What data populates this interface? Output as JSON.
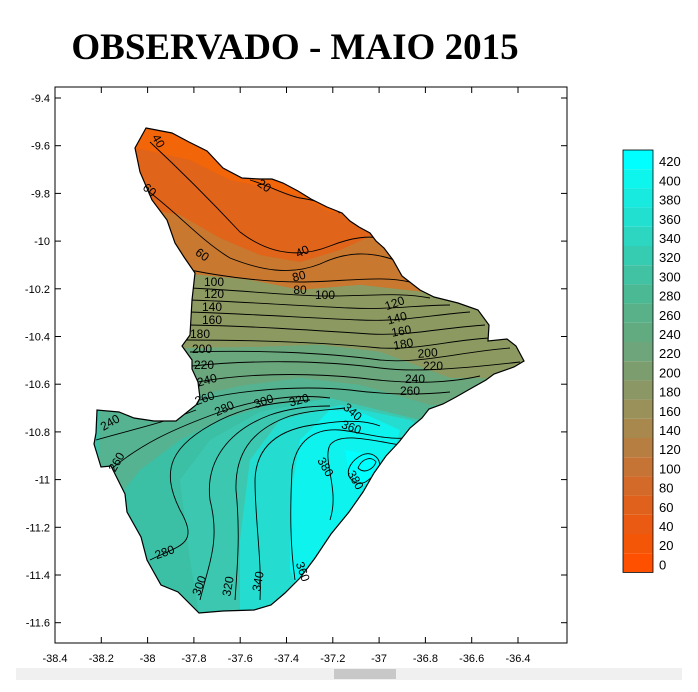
{
  "title": "OBSERVADO - MAIO 2015",
  "axes": {
    "y_ticks": [
      "-9.4",
      "-9.6",
      "-9.8",
      "-10",
      "-10.2",
      "-10.4",
      "-10.6",
      "-10.8",
      "-11",
      "-11.2",
      "-11.4",
      "-11.6"
    ],
    "x_ticks": [
      "-38.4",
      "-38.2",
      "-38",
      "-37.8",
      "-37.6",
      "-37.4",
      "-37.2",
      "-37",
      "-36.8",
      "-36.6",
      "-36.4"
    ]
  },
  "legend": {
    "labels": [
      "420",
      "400",
      "380",
      "360",
      "340",
      "320",
      "300",
      "280",
      "260",
      "240",
      "220",
      "200",
      "180",
      "160",
      "140",
      "120",
      "100",
      "80",
      "60",
      "40",
      "20",
      "0"
    ],
    "colors": [
      "#00ffff",
      "#0ef5ee",
      "#18eadf",
      "#22e0cf",
      "#2cd6c0",
      "#36ccb1",
      "#40c2a3",
      "#4cb995",
      "#58b189",
      "#62aa80",
      "#6fa57b",
      "#7c9e6f",
      "#8b9764",
      "#9a905a",
      "#a9884e",
      "#b77e42",
      "#c57436",
      "#d46a29",
      "#e0611c",
      "#eb5a12",
      "#f35607",
      "#ff5000"
    ]
  },
  "contour_labels": [
    "40",
    "20",
    "60",
    "60",
    "40",
    "80",
    "80",
    "100",
    "100",
    "120",
    "140",
    "160",
    "180",
    "200",
    "220",
    "240",
    "260",
    "120",
    "140",
    "160",
    "180",
    "200",
    "220",
    "240",
    "260",
    "240",
    "280",
    "300",
    "320",
    "340",
    "360",
    "380",
    "380",
    "260",
    "280",
    "300",
    "320",
    "340",
    "360"
  ]
}
